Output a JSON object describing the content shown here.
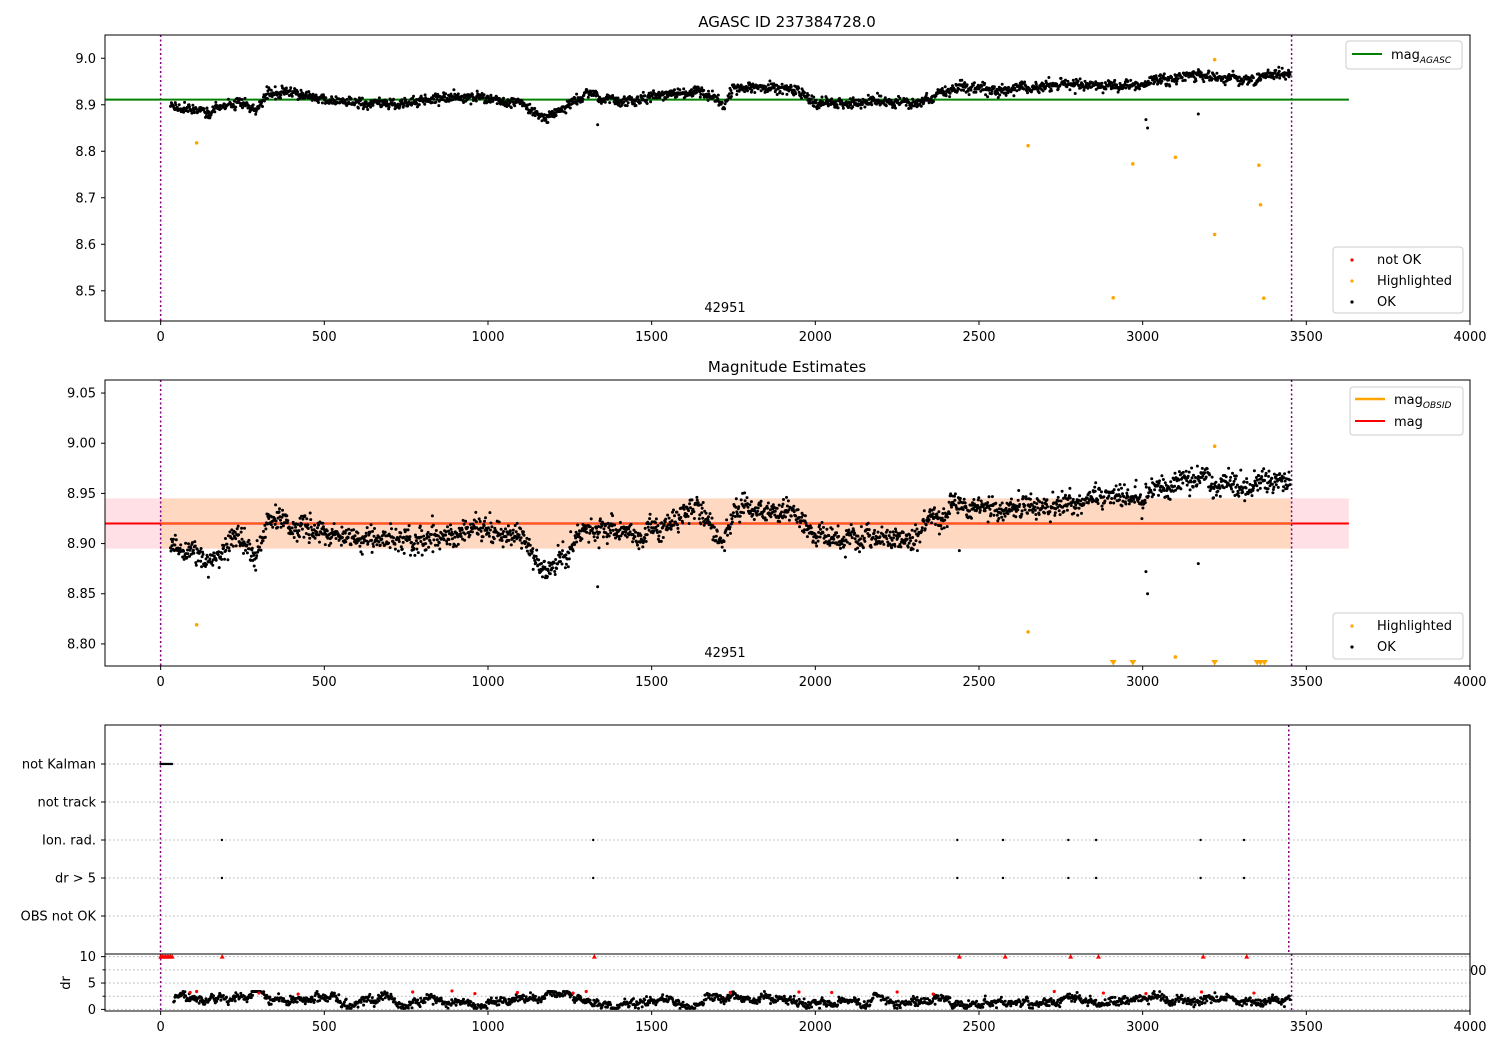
{
  "chart_data": [
    {
      "type": "scatter",
      "title": "AGASC ID 237384728.0",
      "xlim": [
        -170,
        4000
      ],
      "ylim": [
        8.435,
        9.05
      ],
      "xticks": [
        0,
        500,
        1000,
        1500,
        2000,
        2500,
        3000,
        3500,
        4000
      ],
      "xtick_labels": [
        "0",
        "500",
        "1000",
        "1500",
        "2000",
        "2500",
        "3000",
        "3500",
        "4000"
      ],
      "yticks": [
        8.5,
        8.6,
        8.7,
        8.8,
        8.9,
        9.0
      ],
      "ytick_labels": [
        "8.5",
        "8.6",
        "8.7",
        "8.8",
        "8.9",
        "9.0"
      ],
      "annotation": "42951",
      "vlines": [
        0,
        3455
      ],
      "mag_agasc": {
        "label": "mag",
        "subscript": "AGASC",
        "value": 8.911,
        "x_range": [
          -170,
          3630
        ],
        "color": "#008000"
      },
      "ok_series": {
        "name": "OK",
        "color": "#000000",
        "x_range": [
          30,
          3450
        ],
        "trend": [
          [
            30,
            8.9
          ],
          [
            150,
            8.885
          ],
          [
            200,
            8.9
          ],
          [
            250,
            8.905
          ],
          [
            290,
            8.885
          ],
          [
            330,
            8.925
          ],
          [
            600,
            8.905
          ],
          [
            800,
            8.905
          ],
          [
            950,
            8.915
          ],
          [
            1100,
            8.905
          ],
          [
            1180,
            8.87
          ],
          [
            1300,
            8.92
          ],
          [
            1450,
            8.905
          ],
          [
            1640,
            8.935
          ],
          [
            1720,
            8.9
          ],
          [
            1750,
            8.935
          ],
          [
            1950,
            8.93
          ],
          [
            2000,
            8.905
          ],
          [
            2300,
            8.905
          ],
          [
            2450,
            8.94
          ],
          [
            2550,
            8.93
          ],
          [
            2800,
            8.945
          ],
          [
            3000,
            8.945
          ],
          [
            3150,
            8.965
          ],
          [
            3300,
            8.955
          ],
          [
            3450,
            8.965
          ]
        ],
        "outliers": [
          [
            3010,
            8.868
          ],
          [
            3015,
            8.85
          ],
          [
            3170,
            8.88
          ],
          [
            1335,
            8.857
          ]
        ]
      },
      "highlighted": {
        "name": "Highlighted",
        "color": "#ffa500",
        "points": [
          [
            110,
            8.818
          ],
          [
            2650,
            8.812
          ],
          [
            2910,
            8.485
          ],
          [
            2970,
            8.773
          ],
          [
            3100,
            8.787
          ],
          [
            3220,
            8.621
          ],
          [
            3220,
            8.997
          ],
          [
            3355,
            8.77
          ],
          [
            3360,
            8.685
          ],
          [
            3370,
            8.484
          ]
        ]
      },
      "legends": [
        [
          "mag_AGASC"
        ],
        [
          "not OK",
          "Highlighted",
          "OK"
        ]
      ],
      "legend_labels": {
        "not_ok": "not OK",
        "highlighted": "Highlighted",
        "ok": "OK"
      },
      "not_ok_color": "#ff0000"
    },
    {
      "type": "scatter",
      "title": "Magnitude Estimates",
      "xlim": [
        -170,
        4000
      ],
      "ylim": [
        8.778,
        9.063
      ],
      "xticks": [
        0,
        500,
        1000,
        1500,
        2000,
        2500,
        3000,
        3500,
        4000
      ],
      "xtick_labels": [
        "0",
        "500",
        "1000",
        "1500",
        "2000",
        "2500",
        "3000",
        "3500",
        "4000"
      ],
      "yticks": [
        8.8,
        8.85,
        8.9,
        8.95,
        9.0,
        9.05
      ],
      "ytick_labels": [
        "8.80",
        "8.85",
        "8.90",
        "8.95",
        "9.00",
        "9.05"
      ],
      "annotation": "42951",
      "vlines": [
        0,
        3455
      ],
      "mag": {
        "label": "mag",
        "value": 8.92,
        "band": [
          8.895,
          8.945
        ],
        "x_range": [
          -170,
          3630
        ],
        "color": "#ff0000"
      },
      "mag_obsid": {
        "label": "mag",
        "subscript": "OBSID",
        "color": "#ffa500"
      },
      "ok_series": {
        "name": "OK",
        "color": "#000000",
        "x_range": [
          30,
          3450
        ],
        "trend": [
          [
            30,
            8.9
          ],
          [
            150,
            8.885
          ],
          [
            200,
            8.9
          ],
          [
            250,
            8.905
          ],
          [
            290,
            8.885
          ],
          [
            330,
            8.925
          ],
          [
            600,
            8.905
          ],
          [
            800,
            8.905
          ],
          [
            950,
            8.915
          ],
          [
            1100,
            8.905
          ],
          [
            1180,
            8.87
          ],
          [
            1300,
            8.92
          ],
          [
            1450,
            8.905
          ],
          [
            1640,
            8.935
          ],
          [
            1720,
            8.9
          ],
          [
            1750,
            8.935
          ],
          [
            1950,
            8.93
          ],
          [
            2000,
            8.905
          ],
          [
            2300,
            8.905
          ],
          [
            2450,
            8.94
          ],
          [
            2550,
            8.93
          ],
          [
            2800,
            8.945
          ],
          [
            3000,
            8.945
          ],
          [
            3150,
            8.965
          ],
          [
            3300,
            8.955
          ],
          [
            3450,
            8.965
          ]
        ],
        "outliers": [
          [
            3010,
            8.872
          ],
          [
            3015,
            8.85
          ],
          [
            3170,
            8.88
          ],
          [
            1335,
            8.857
          ],
          [
            2440,
            8.893
          ]
        ]
      },
      "highlighted": {
        "name": "Highlighted",
        "color": "#ffa500",
        "points": [
          [
            110,
            8.819
          ],
          [
            2650,
            8.812
          ],
          [
            3100,
            8.787
          ],
          [
            3220,
            8.997
          ]
        ],
        "clipped_x": [
          2910,
          2970,
          3220,
          3350,
          3360,
          3372
        ]
      },
      "legends": [
        [
          "mag_OBSID",
          "mag"
        ],
        [
          "Highlighted",
          "OK"
        ]
      ],
      "legend_labels": {
        "highlighted": "Highlighted",
        "ok": "OK"
      }
    },
    {
      "type": "scatter",
      "title": "",
      "xlim": [
        -170,
        4010
      ],
      "categories": [
        "not Kalman",
        "not track",
        "Ion. rad.",
        "dr > 5",
        "OBS not OK"
      ],
      "vlines": [
        0,
        3455
      ],
      "flags": {
        "not Kalman": [
          0,
          5,
          10,
          15,
          20,
          25,
          30,
          35
        ],
        "not track": [],
        "Ion. rad.": [
          188,
          1325,
          2440,
          2580,
          2780,
          2865,
          3185,
          3318
        ],
        "dr > 5": [
          188,
          1325,
          2440,
          2580,
          2780,
          2865,
          3185,
          3318
        ],
        "OBS not OK": []
      }
    },
    {
      "type": "scatter",
      "title": "",
      "xlim": [
        -170,
        4000
      ],
      "ylim": [
        -0.3,
        10.5
      ],
      "ylabel": "dr",
      "yticks": [
        0,
        5,
        10
      ],
      "ytick_labels": [
        "0",
        "5",
        "10"
      ],
      "xticks": [
        0,
        500,
        1000,
        1500,
        2000,
        2500,
        3000,
        3500,
        4000
      ],
      "xtick_labels": [
        "0",
        "500",
        "1000",
        "1500",
        "2000",
        "2500",
        "3000",
        "3500",
        "4000"
      ],
      "vlines": [
        0,
        3455
      ],
      "clipped_label": "00",
      "red_at_top_x": [
        0,
        5,
        10,
        15,
        20,
        25,
        30,
        35,
        188,
        1325,
        2440,
        2580,
        2780,
        2865,
        3185,
        3318
      ],
      "red_points": [
        [
          90,
          3.2
        ],
        [
          110,
          3.4
        ],
        [
          300,
          3.1
        ],
        [
          420,
          2.9
        ],
        [
          770,
          3.3
        ],
        [
          890,
          3.5
        ],
        [
          960,
          3.0
        ],
        [
          1090,
          3.2
        ],
        [
          1260,
          3.1
        ],
        [
          1300,
          3.4
        ],
        [
          1740,
          3.2
        ],
        [
          1950,
          3.3
        ],
        [
          2050,
          3.2
        ],
        [
          2250,
          3.3
        ],
        [
          2360,
          2.9
        ],
        [
          2730,
          3.4
        ],
        [
          2880,
          3.1
        ],
        [
          3010,
          3.0
        ],
        [
          3180,
          3.3
        ],
        [
          3340,
          3.1
        ]
      ]
    }
  ]
}
